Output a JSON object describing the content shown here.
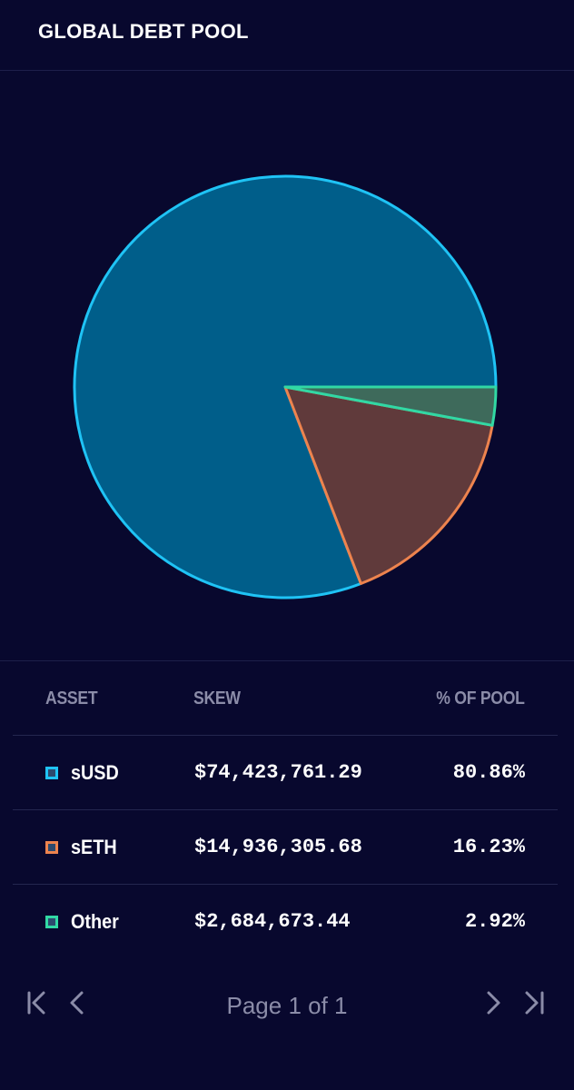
{
  "header": {
    "title": "GLOBAL DEBT POOL"
  },
  "colors": {
    "background": "#08082e",
    "susd_stroke": "#1fc3f5",
    "susd_fill": "#005e8a",
    "seth_stroke": "#ed834e",
    "seth_fill": "#603a3b",
    "other_stroke": "#31d8a4",
    "other_fill": "#3e6a5b",
    "muted_text": "#8b8ca8"
  },
  "chart_data": {
    "type": "pie",
    "slices": [
      {
        "label": "sUSD",
        "value": 80.86,
        "stroke": "#1fc3f5",
        "fill": "#005e8a"
      },
      {
        "label": "sETH",
        "value": 16.23,
        "stroke": "#ed834e",
        "fill": "#603a3b"
      },
      {
        "label": "Other",
        "value": 2.92,
        "stroke": "#31d8a4",
        "fill": "#3e6a5b"
      }
    ],
    "start_angle": "3 o'clock",
    "direction": "counterclockwise"
  },
  "table": {
    "headers": {
      "asset": "ASSET",
      "skew": "SKEW",
      "pct": "% OF POOL"
    },
    "rows": [
      {
        "asset": "sUSD",
        "skew": "$74,423,761.29",
        "pct": "80.86%",
        "color": "#1fc3f5"
      },
      {
        "asset": "sETH",
        "skew": "$14,936,305.68",
        "pct": "16.23%",
        "color": "#ed834e"
      },
      {
        "asset": "Other",
        "skew": "$2,684,673.44",
        "pct": "2.92%",
        "color": "#31d8a4"
      }
    ]
  },
  "pagination": {
    "label": "Page 1 of 1",
    "first_icon": "first-page-icon",
    "prev_icon": "chevron-left-icon",
    "next_icon": "chevron-right-icon",
    "last_icon": "last-page-icon"
  }
}
